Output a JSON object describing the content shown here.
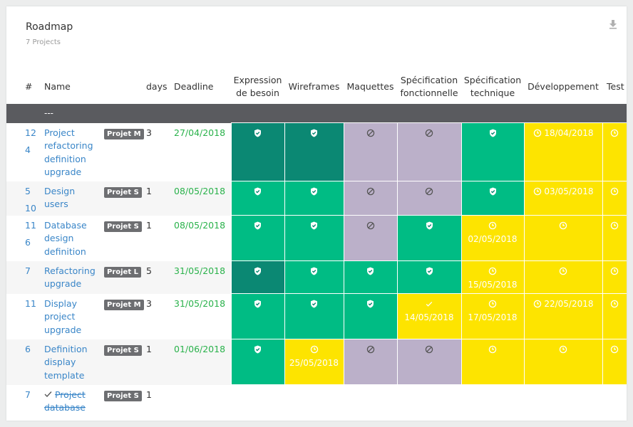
{
  "card": {
    "title": "Roadmap",
    "subtitle": "7 Projects"
  },
  "headers": {
    "num": "#",
    "name": "Name",
    "days": "days",
    "deadline": "Deadline",
    "stages": [
      [
        "Expression",
        "de besoin"
      ],
      [
        "Wireframes"
      ],
      [
        "Maquettes"
      ],
      [
        "Spécification",
        "fonctionnelle"
      ],
      [
        "Spécification",
        "technique"
      ],
      [
        "Développement"
      ],
      [
        "Test"
      ]
    ]
  },
  "separator": "---",
  "rows": [
    {
      "ids": [
        "12",
        "4"
      ],
      "name": "Project refactoring definition upgrade",
      "tag": "Projet M",
      "days": "3",
      "deadline": "27/04/2018",
      "done": false,
      "stages": [
        {
          "color": "dark",
          "icon": "shield",
          "date": ""
        },
        {
          "color": "dark",
          "icon": "shield",
          "date": ""
        },
        {
          "color": "purple",
          "icon": "ban",
          "date": ""
        },
        {
          "color": "purple",
          "icon": "ban",
          "date": ""
        },
        {
          "color": "green",
          "icon": "shield",
          "date": ""
        },
        {
          "color": "yellow",
          "icon": "clock",
          "date": "18/04/2018",
          "inline": true
        },
        {
          "color": "yellow",
          "icon": "clock",
          "date": ""
        }
      ]
    },
    {
      "ids": [
        "5",
        "10"
      ],
      "name": "Design users",
      "tag": "Projet S",
      "days": "1",
      "deadline": "08/05/2018",
      "done": false,
      "stages": [
        {
          "color": "green",
          "icon": "shield",
          "date": ""
        },
        {
          "color": "green",
          "icon": "shield",
          "date": ""
        },
        {
          "color": "purple",
          "icon": "ban",
          "date": ""
        },
        {
          "color": "purple",
          "icon": "ban",
          "date": ""
        },
        {
          "color": "green",
          "icon": "shield",
          "date": ""
        },
        {
          "color": "yellow",
          "icon": "clock",
          "date": "03/05/2018",
          "inline": true
        },
        {
          "color": "yellow",
          "icon": "clock",
          "date": ""
        }
      ]
    },
    {
      "ids": [
        "11",
        "6"
      ],
      "name": "Database design definition",
      "tag": "Projet S",
      "days": "1",
      "deadline": "08/05/2018",
      "done": false,
      "stages": [
        {
          "color": "green",
          "icon": "shield",
          "date": ""
        },
        {
          "color": "green",
          "icon": "shield",
          "date": ""
        },
        {
          "color": "purple",
          "icon": "ban",
          "date": ""
        },
        {
          "color": "green",
          "icon": "shield",
          "date": ""
        },
        {
          "color": "yellow",
          "icon": "clock",
          "date": "02/05/2018"
        },
        {
          "color": "yellow",
          "icon": "clock",
          "date": ""
        },
        {
          "color": "yellow",
          "icon": "clock",
          "date": ""
        }
      ]
    },
    {
      "ids": [
        "7"
      ],
      "name": "Refactoring upgrade",
      "tag": "Projet L",
      "days": "5",
      "deadline": "31/05/2018",
      "done": false,
      "stages": [
        {
          "color": "dark",
          "icon": "shield",
          "date": ""
        },
        {
          "color": "green",
          "icon": "shield",
          "date": ""
        },
        {
          "color": "green",
          "icon": "shield",
          "date": ""
        },
        {
          "color": "green",
          "icon": "shield",
          "date": ""
        },
        {
          "color": "yellow",
          "icon": "clock",
          "date": "15/05/2018"
        },
        {
          "color": "yellow",
          "icon": "clock",
          "date": ""
        },
        {
          "color": "yellow",
          "icon": "clock",
          "date": ""
        }
      ]
    },
    {
      "ids": [
        "11"
      ],
      "name": "Display project upgrade",
      "tag": "Projet M",
      "days": "3",
      "deadline": "31/05/2018",
      "done": false,
      "stages": [
        {
          "color": "green",
          "icon": "shield",
          "date": ""
        },
        {
          "color": "green",
          "icon": "shield",
          "date": ""
        },
        {
          "color": "green",
          "icon": "shield",
          "date": ""
        },
        {
          "color": "yellow",
          "icon": "check",
          "date": "14/05/2018"
        },
        {
          "color": "yellow",
          "icon": "clock",
          "date": "17/05/2018"
        },
        {
          "color": "yellow",
          "icon": "clock",
          "date": "22/05/2018",
          "inline": true
        },
        {
          "color": "yellow",
          "icon": "clock",
          "date": ""
        }
      ]
    },
    {
      "ids": [
        "6"
      ],
      "name": "Definition display template",
      "tag": "Projet S",
      "days": "1",
      "deadline": "01/06/2018",
      "done": false,
      "stages": [
        {
          "color": "green",
          "icon": "shield",
          "date": ""
        },
        {
          "color": "yellow",
          "icon": "clock",
          "date": "25/05/2018"
        },
        {
          "color": "purple",
          "icon": "ban",
          "date": ""
        },
        {
          "color": "purple",
          "icon": "ban",
          "date": ""
        },
        {
          "color": "yellow",
          "icon": "clock",
          "date": ""
        },
        {
          "color": "yellow",
          "icon": "clock",
          "date": ""
        },
        {
          "color": "yellow",
          "icon": "clock",
          "date": ""
        }
      ]
    },
    {
      "ids": [
        "7"
      ],
      "name": "Project database",
      "tag": "Projet S",
      "days": "1",
      "deadline": "",
      "done": true,
      "stages": [
        {
          "color": "none",
          "icon": "",
          "date": ""
        },
        {
          "color": "none",
          "icon": "",
          "date": ""
        },
        {
          "color": "none",
          "icon": "",
          "date": ""
        },
        {
          "color": "none",
          "icon": "",
          "date": ""
        },
        {
          "color": "none",
          "icon": "",
          "date": ""
        },
        {
          "color": "none",
          "icon": "",
          "date": ""
        },
        {
          "color": "none",
          "icon": "",
          "date": ""
        }
      ]
    }
  ],
  "colors": {
    "dark": "#0b8873",
    "green": "#00bc84",
    "purple": "#bbb0c9",
    "yellow": "#fde400",
    "link": "#3a86c8",
    "deadline": "#2ab24b",
    "separator": "#5a5b5f",
    "tag": "#6d6e71"
  }
}
